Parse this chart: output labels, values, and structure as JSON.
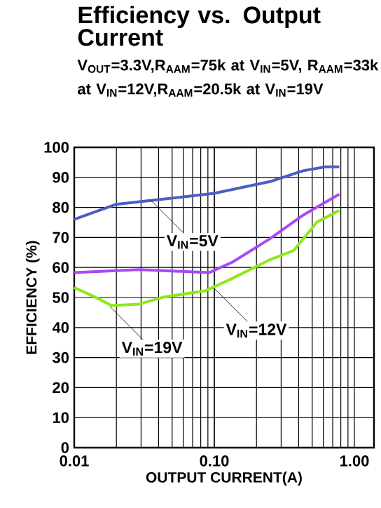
{
  "chart_data": {
    "type": "line",
    "title": "Efficiency vs. Output Current",
    "subtitle": "V$_{OUT}$=3.3V,R$_{AAM}$=75k at V$_{IN}$=5V, R$_{AAM}$=33k at V$_{IN}$=12V,R$_{AAM}$=20.5k at V$_{IN}$=19V",
    "xlabel": "OUTPUT CURRENT(A)",
    "ylabel": "EFFICIENCY (%)",
    "log": "x",
    "grid": true,
    "xlim": [
      0.01,
      1.38
    ],
    "ylim": [
      0,
      100
    ],
    "xticks": [
      {
        "value": 0.01,
        "label": "0.01"
      },
      {
        "value": 0.1,
        "label": "0.10"
      },
      {
        "value": 1,
        "label": "1.00"
      }
    ],
    "yticks": [
      0,
      10,
      20,
      30,
      40,
      50,
      60,
      70,
      80,
      90,
      100
    ],
    "series": [
      {
        "color": "#4a5fc1",
        "x": [
          0.01,
          0.0198,
          0.037,
          0.1,
          0.25,
          0.43,
          0.62,
          0.78
        ],
        "values": [
          76,
          81,
          82.4,
          84.7,
          88.6,
          92.2,
          93.5,
          93.5
        ]
      },
      {
        "color": "#a64bf4",
        "x": [
          0.01,
          0.029,
          0.092,
          0.135,
          0.25,
          0.43,
          0.78
        ],
        "values": [
          58.3,
          59.3,
          58.3,
          61.8,
          69.6,
          77.4,
          84.4
        ]
      },
      {
        "color": "#8fe81c",
        "x": [
          0.01,
          0.0136,
          0.0185,
          0.029,
          0.043,
          0.086,
          0.135,
          0.25,
          0.37,
          0.54,
          0.78
        ],
        "values": [
          53.3,
          50.5,
          47.3,
          47.8,
          50.1,
          52.2,
          56.4,
          62.6,
          65.7,
          75.1,
          79
        ]
      }
    ],
    "annotations": [
      {
        "text": "V$_{IN}$=5V",
        "x": 0.035,
        "y": 82.5
      },
      {
        "text": "V$_{IN}$=12V",
        "x": 0.1,
        "y": 53
      },
      {
        "text": "V$_{IN}$=19V",
        "x": 0.018,
        "y": 47
      }
    ]
  }
}
